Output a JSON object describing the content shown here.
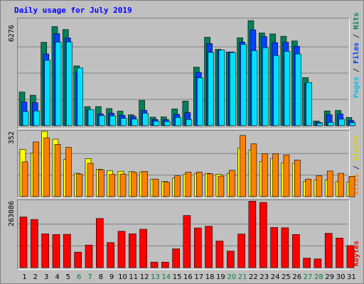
{
  "title": "Daily usage for July 2019",
  "chart_data": {
    "type": "bar",
    "x": [
      "1",
      "2",
      "3",
      "4",
      "5",
      "6",
      "7",
      "8",
      "9",
      "10",
      "11",
      "12",
      "13",
      "14",
      "15",
      "16",
      "17",
      "18",
      "19",
      "20",
      "21",
      "22",
      "23",
      "24",
      "25",
      "26",
      "27",
      "28",
      "29",
      "30",
      "31"
    ],
    "weekend_days": [
      "6",
      "7",
      "13",
      "14",
      "20",
      "21",
      "27",
      "28"
    ],
    "colors": {
      "weekday_label": "#000000",
      "weekend_label": "#008040",
      "hits": "#00805c",
      "files": "#0040ff",
      "pages": "#00e0ff",
      "visits": "#ffff00",
      "sites": "#ff8000",
      "kbytes": "#ff0000",
      "title": "#0000ff"
    },
    "panels": [
      {
        "name": "hits-files-pages",
        "ymax_label": "6276",
        "ymax": 6276,
        "legend": [
          "Pages",
          "Files",
          "Hits"
        ],
        "series": [
          {
            "name": "Hits",
            "values": [
              2010,
              1820,
              4980,
              5920,
              5740,
              3570,
              1140,
              1140,
              1020,
              870,
              650,
              1510,
              510,
              520,
              1000,
              1470,
              3500,
              5280,
              4560,
              4400,
              5250,
              6270,
              5540,
              5480,
              5340,
              5060,
              2870,
              280,
              880,
              910,
              490
            ]
          },
          {
            "name": "Files",
            "values": [
              1410,
              1370,
              4280,
              5500,
              5240,
              3200,
              940,
              700,
              750,
              620,
              560,
              920,
              370,
              360,
              680,
              780,
              3180,
              4900,
              4480,
              4400,
              4990,
              5720,
              5320,
              4960,
              4980,
              4740,
              2520,
              200,
              650,
              700,
              310
            ]
          },
          {
            "name": "Pages",
            "values": [
              850,
              880,
              3900,
              4990,
              5000,
              3450,
              960,
              600,
              590,
              440,
              390,
              740,
              270,
              250,
              490,
              370,
              2860,
              4380,
              4510,
              4370,
              4860,
              4480,
              4660,
              4190,
              4440,
              4280,
              2580,
              150,
              200,
              390,
              180
            ]
          }
        ]
      },
      {
        "name": "visits-sites",
        "ymax_label": "352",
        "ymax": 352,
        "legend": [
          "Sites",
          "Visits"
        ],
        "series": [
          {
            "name": "Visits",
            "values": [
              255,
              235,
              352,
              310,
              200,
              126,
              205,
              148,
              140,
              137,
              135,
              133,
              94,
              82,
              100,
              120,
              125,
              125,
              120,
              125,
              262,
              252,
              190,
              205,
              182,
              180,
              82,
              90,
              90,
              82,
              80
            ]
          },
          {
            "name": "Sites",
            "values": [
              188,
              295,
              317,
              282,
              266,
              122,
              180,
              145,
              120,
              122,
              130,
              136,
              95,
              78,
              112,
              132,
              133,
              123,
              111,
              142,
              330,
              285,
              232,
              232,
              225,
              198,
              95,
              112,
              138,
              126,
              110
            ]
          }
        ]
      },
      {
        "name": "kbytes",
        "ymax_label": "263086",
        "ymax": 263086,
        "legend": [
          "KBytes"
        ],
        "series": [
          {
            "name": "KBytes",
            "values": [
              202000,
              192000,
              135000,
              132000,
              133000,
              62000,
              90000,
              196000,
              100000,
              145000,
              135000,
              153000,
              22000,
              22000,
              75000,
              208000,
              158000,
              165000,
              106000,
              66000,
              134000,
              265000,
              260000,
              160000,
              159000,
              132000,
              38000,
              35000,
              137000,
              118000,
              88000
            ]
          }
        ]
      }
    ]
  }
}
